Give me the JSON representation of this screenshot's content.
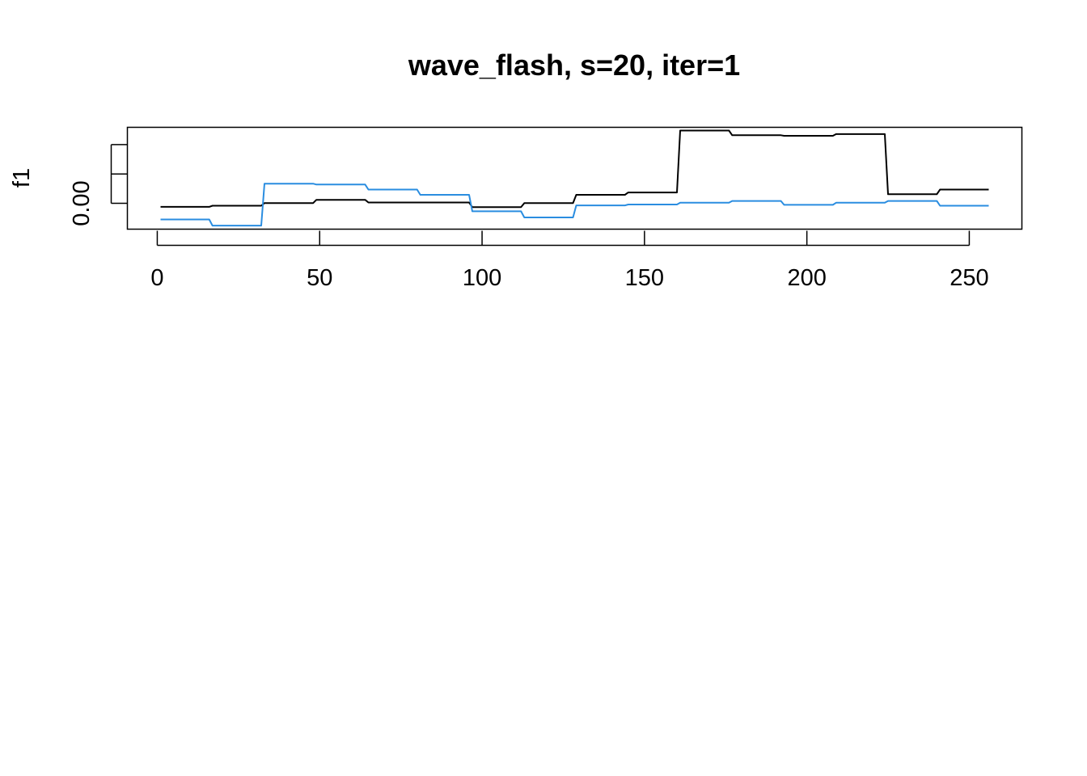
{
  "chart_data": {
    "type": "line",
    "title": "wave_flash, s=20, iter=1",
    "xlabel": "",
    "ylabel": "f1",
    "x_ticks": [
      0,
      50,
      100,
      150,
      200,
      250
    ],
    "y_tick_values": [
      0.0,
      0.01,
      0.02
    ],
    "y_tick_labels": [
      "0.00",
      "",
      ""
    ],
    "xlim": [
      -9.2,
      266.2
    ],
    "ylim": [
      -0.0088,
      0.0259
    ],
    "grid": false,
    "legend": "none",
    "colors": {
      "series_1": "#000000",
      "series_2": "#2a8de0"
    },
    "series": [
      {
        "color": "#000000",
        "steps": [
          [
            1,
            16,
            -0.0012
          ],
          [
            17,
            32,
            -0.0008
          ],
          [
            33,
            48,
            0.0001
          ],
          [
            49,
            64,
            0.0012
          ],
          [
            65,
            80,
            0.0003
          ],
          [
            81,
            96,
            0.0003
          ],
          [
            97,
            112,
            -0.0013
          ],
          [
            113,
            128,
            0.0001
          ],
          [
            129,
            144,
            0.0029
          ],
          [
            145,
            160,
            0.0037
          ],
          [
            161,
            176,
            0.0248
          ],
          [
            177,
            192,
            0.0232
          ],
          [
            193,
            208,
            0.023
          ],
          [
            209,
            224,
            0.0236
          ],
          [
            225,
            240,
            0.0031
          ],
          [
            241,
            256,
            0.0047
          ]
        ]
      },
      {
        "color": "#2a8de0",
        "steps": [
          [
            1,
            16,
            -0.0055
          ],
          [
            17,
            32,
            -0.0076
          ],
          [
            33,
            48,
            0.0067
          ],
          [
            49,
            64,
            0.0064
          ],
          [
            65,
            80,
            0.0047
          ],
          [
            81,
            96,
            0.0029
          ],
          [
            97,
            112,
            -0.0027
          ],
          [
            113,
            128,
            -0.0048
          ],
          [
            129,
            144,
            -0.0007
          ],
          [
            145,
            160,
            -0.0004
          ],
          [
            161,
            176,
            0.0002
          ],
          [
            177,
            192,
            0.0008
          ],
          [
            193,
            208,
            -0.0005
          ],
          [
            209,
            224,
            0.0002
          ],
          [
            225,
            240,
            0.0008
          ],
          [
            241,
            256,
            -0.0008
          ]
        ]
      }
    ]
  }
}
